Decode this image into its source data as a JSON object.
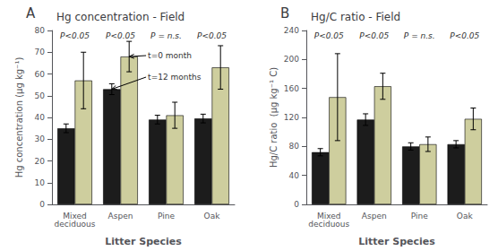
{
  "chart_data": [
    {
      "type": "bar",
      "panel_label": "A",
      "title": "Hg concentration - Field",
      "y_label": "Hg concentration (μg kg⁻¹)",
      "x_label": "Litter Species",
      "categories": [
        "Mixed\ndeciduous",
        "Aspen",
        "Pine",
        "Oak"
      ],
      "series": [
        {
          "color": "#1c1c1c",
          "values": [
            35,
            53,
            39,
            39.5
          ],
          "errors": [
            2,
            2.5,
            2,
            2
          ]
        },
        {
          "color": "#cece9e",
          "values": [
            57,
            68,
            41,
            63
          ],
          "errors": [
            13,
            7,
            6,
            10
          ]
        }
      ],
      "ylim": [
        0,
        80
      ],
      "yticks": [
        0,
        10,
        20,
        30,
        40,
        50,
        60,
        70,
        80
      ],
      "grid": false,
      "annotations": [
        {
          "text": "P<0.05",
          "category": "Mixed\ndeciduous"
        },
        {
          "text": "P<0.05",
          "category": "Aspen"
        },
        {
          "text": "P = n.s.",
          "category": "Pine"
        },
        {
          "text": "P<0.05",
          "category": "Oak"
        },
        {
          "text": "t=0 month",
          "category": "Aspen",
          "series": 1
        },
        {
          "text": "t=12 months",
          "category": "Aspen",
          "series": 0
        }
      ]
    },
    {
      "type": "bar",
      "panel_label": "B",
      "title": "Hg/C ratio - Field",
      "y_label": "Hg/C ratio  (μg kg⁻¹ C)",
      "x_label": "Litter Species",
      "categories": [
        "Mixed\ndeciduous",
        "Aspen",
        "Pine",
        "Oak"
      ],
      "series": [
        {
          "color": "#1c1c1c",
          "values": [
            72,
            117,
            80,
            83
          ],
          "errors": [
            5,
            8,
            5,
            5
          ]
        },
        {
          "color": "#cece9e",
          "values": [
            148,
            163,
            83,
            118
          ],
          "errors": [
            60,
            18,
            10,
            15
          ]
        }
      ],
      "ylim": [
        0,
        240
      ],
      "yticks": [
        0,
        40,
        80,
        120,
        160,
        200,
        240
      ],
      "grid": false,
      "annotations": [
        {
          "text": "P<0.05",
          "category": "Mixed\ndeciduous"
        },
        {
          "text": "P<0.05",
          "category": "Aspen"
        },
        {
          "text": "P = n.s.",
          "category": "Pine"
        },
        {
          "text": "P<0.05",
          "category": "Oak"
        }
      ]
    }
  ]
}
